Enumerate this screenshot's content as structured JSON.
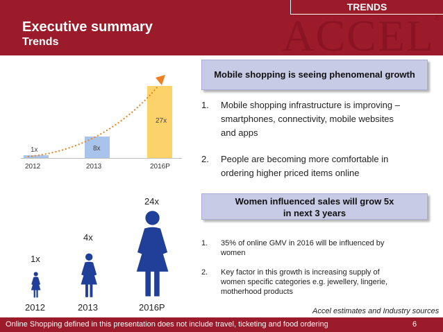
{
  "header": {
    "title": "Executive summary",
    "subtitle": "Trends",
    "tag": "TRENDS",
    "watermark": "ACCEL"
  },
  "top_chart": {
    "bars": [
      {
        "category": "2012",
        "label": "1x",
        "value": 1,
        "color": "#a9c4eb"
      },
      {
        "category": "2013",
        "label": "8x",
        "value": 8,
        "color": "#a9c4eb"
      },
      {
        "category": "2016P",
        "label": "27x",
        "value": 27,
        "color": "#fcd26b"
      }
    ],
    "trend_color": "#f07f1f"
  },
  "callouts": {
    "mobile": "Mobile shopping is seeing phenomenal growth",
    "women_line1": "Women influenced sales will grow 5x",
    "women_line2": "in next 3 years"
  },
  "mobile_points": [
    {
      "num": "1.",
      "lines": [
        "Mobile shopping infrastructure is improving –",
        "smartphones, connectivity, mobile websites",
        "and apps"
      ]
    },
    {
      "num": "2.",
      "lines": [
        "People are becoming more comfortable in",
        "ordering higher priced items online"
      ]
    }
  ],
  "women_points": [
    {
      "num": "1.",
      "lines": [
        "35% of online GMV in 2016 will be influenced by",
        "women"
      ]
    },
    {
      "num": "2.",
      "lines": [
        "Key factor in this growth is increasing supply of",
        "women specific categories e.g. jewellery, lingerie,",
        "motherhood products"
      ]
    }
  ],
  "women_chart": {
    "items": [
      {
        "year": "2012",
        "label": "1x",
        "value": 1
      },
      {
        "year": "2013",
        "label": "4x",
        "value": 4
      },
      {
        "year": "2016P",
        "label": "24x",
        "value": 24
      }
    ],
    "color": "#1f3f99"
  },
  "source": "Accel estimates and Industry sources",
  "footer": {
    "note": "Online Shopping defined in this presentation does not include travel, ticketing and food ordering",
    "page": "6"
  },
  "colors": {
    "brand": "#9b1b2a",
    "callout": "#c7cbe6",
    "figure": "#1f3f99"
  }
}
